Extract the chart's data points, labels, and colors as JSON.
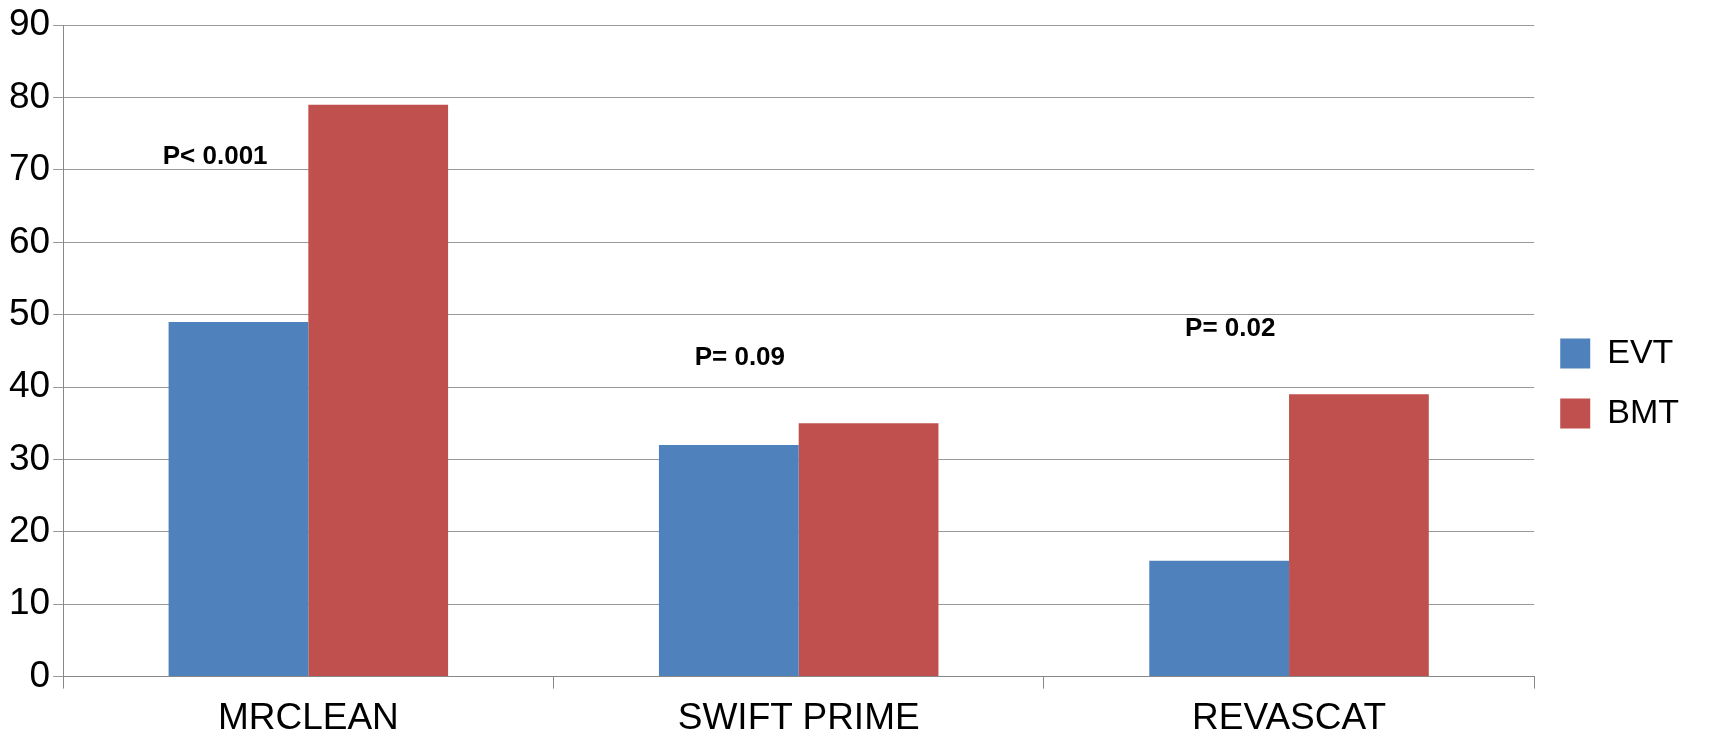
{
  "chart_data": {
    "type": "bar",
    "categories": [
      "MRCLEAN",
      "SWIFT PRIME",
      "REVASCAT"
    ],
    "series": [
      {
        "name": "EVT",
        "color": "#4f81bd",
        "values": [
          49,
          32,
          16
        ]
      },
      {
        "name": "BMT",
        "color": "#c0504d",
        "values": [
          79,
          35,
          39
        ]
      }
    ],
    "ylim": [
      0,
      90
    ],
    "yticks": [
      0,
      10,
      20,
      30,
      40,
      50,
      60,
      70,
      80,
      90
    ],
    "grid": "y",
    "legend": "right",
    "annotations": [
      "P< 0.001",
      "P= 0.09",
      "P= 0.02"
    ]
  }
}
